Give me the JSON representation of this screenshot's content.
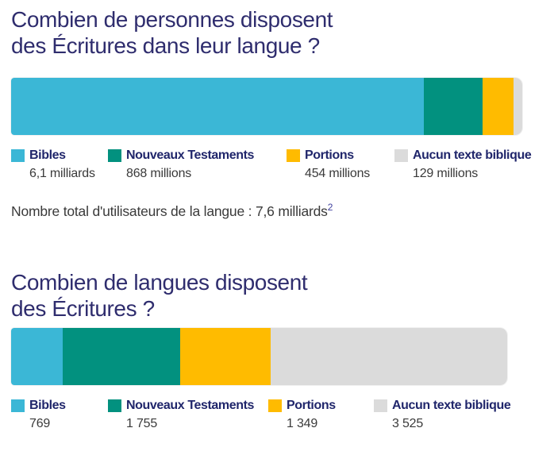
{
  "colors": {
    "bibles": "#3bb7d6",
    "nouveaux_testaments": "#02917f",
    "portions": "#ffbb00",
    "aucun_texte": "#dbdbdb",
    "title_navy": "#2f2d6e",
    "legend_navy": "#20266b",
    "value_gray": "#3a3a3a"
  },
  "chart_data": [
    {
      "type": "bar",
      "stacked": true,
      "orientation": "horizontal",
      "title": "Combien de personnes disposent des Écritures dans leur langue ?",
      "title_lines": [
        "Combien de personnes disposent",
        "des Écritures dans leur langue ?"
      ],
      "categories": [
        "Bibles",
        "Nouveaux Testaments",
        "Portions",
        "Aucun texte biblique"
      ],
      "values_millions": [
        6100,
        868,
        454,
        129
      ],
      "segments": [
        {
          "label": "Bibles",
          "value": 6100,
          "value_label": "6,1 milliards",
          "color": "#3bb7d6"
        },
        {
          "label": "Nouveaux Testaments",
          "value": 868,
          "value_label": "868 millions",
          "color": "#02917f"
        },
        {
          "label": "Portions",
          "value": 454,
          "value_label": "454 millions",
          "color": "#ffbb00"
        },
        {
          "label": "Aucun texte biblique",
          "value": 129,
          "value_label": "129 millions",
          "color": "#dbdbdb"
        }
      ],
      "legend_position": "bottom",
      "footnote": {
        "text": "Nombre total d'utilisateurs de la langue : 7,6 milliards",
        "superscript": "2"
      }
    },
    {
      "type": "bar",
      "stacked": true,
      "orientation": "horizontal",
      "title": "Combien de langues disposent des Écritures ?",
      "title_lines": [
        "Combien de langues disposent",
        "des Écritures ?"
      ],
      "categories": [
        "Bibles",
        "Nouveaux Testaments",
        "Portions",
        "Aucun texte biblique"
      ],
      "values": [
        769,
        1755,
        1349,
        3525
      ],
      "segments": [
        {
          "label": "Bibles",
          "value": 769,
          "value_label": "769",
          "color": "#3bb7d6"
        },
        {
          "label": "Nouveaux Testaments",
          "value": 1755,
          "value_label": "1 755",
          "color": "#02917f"
        },
        {
          "label": "Portions",
          "value": 1349,
          "value_label": "1 349",
          "color": "#ffbb00"
        },
        {
          "label": "Aucun texte biblique",
          "value": 3525,
          "value_label": "3 525",
          "color": "#dbdbdb"
        }
      ],
      "legend_position": "bottom"
    }
  ]
}
